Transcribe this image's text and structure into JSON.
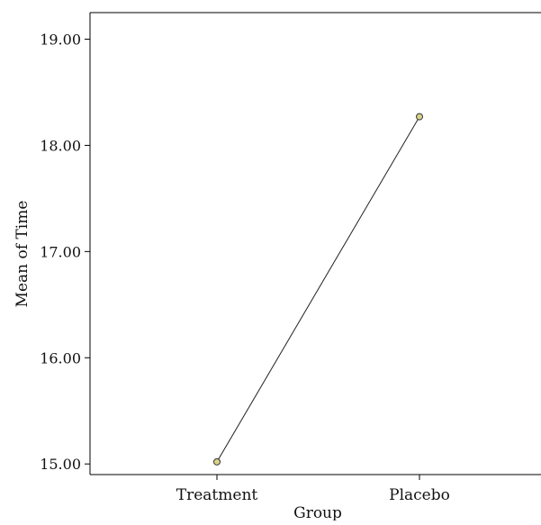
{
  "chart_data": {
    "type": "line",
    "categories": [
      "Treatment",
      "Placebo"
    ],
    "series": [
      {
        "values": [
          15.02,
          18.27
        ]
      }
    ],
    "xlabel": "Group",
    "ylabel": "Mean of Time",
    "ylim": [
      14.9,
      19.25
    ],
    "yticks": [
      15.0,
      16.0,
      17.0,
      18.0,
      19.0
    ],
    "ytick_labels": [
      "15.00",
      "16.00",
      "17.00",
      "18.00",
      "19.00"
    ],
    "grid": false,
    "legend": "none",
    "colors": {
      "line": "#222222",
      "marker_fill": "#d9d38a",
      "marker_stroke": "#333333",
      "axis": "#000000"
    }
  }
}
